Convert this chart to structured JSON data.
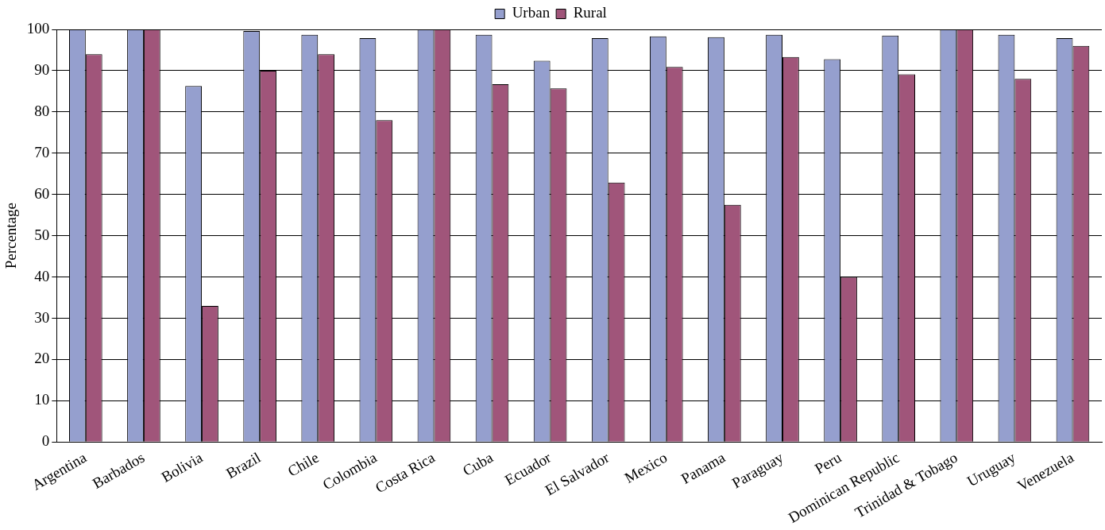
{
  "chart_data": {
    "type": "bar",
    "ylabel": "Percentage",
    "categories": [
      "Argentina",
      "Barbados",
      "Bolivia",
      "Brazil",
      "Chile",
      "Colombia",
      "Costa Rica",
      "Cuba",
      "Ecuador",
      "El Salvador",
      "Mexico",
      "Panama",
      "Paraguay",
      "Peru",
      "Dominican Republic",
      "Trinidad & Tobago",
      "Uruguay",
      "Venezuela"
    ],
    "series": [
      {
        "name": "Urban",
        "color": "#959fce",
        "values": [
          100,
          100,
          86.3,
          99.6,
          98.7,
          97.9,
          100,
          98.7,
          92.4,
          97.9,
          98.3,
          98.1,
          98.7,
          92.8,
          98.5,
          100,
          98.7,
          97.9
        ]
      },
      {
        "name": "Rural",
        "color": "#a0557a",
        "values": [
          94,
          100,
          33,
          90,
          94,
          78,
          100,
          86.7,
          85.7,
          62.9,
          90.9,
          57.5,
          93.3,
          40,
          89.1,
          100,
          88,
          96
        ]
      }
    ],
    "ylim": [
      0,
      100
    ],
    "yticks": [
      0,
      10,
      20,
      30,
      40,
      50,
      60,
      70,
      80,
      90,
      100
    ],
    "grid": "y",
    "legend": "top"
  }
}
